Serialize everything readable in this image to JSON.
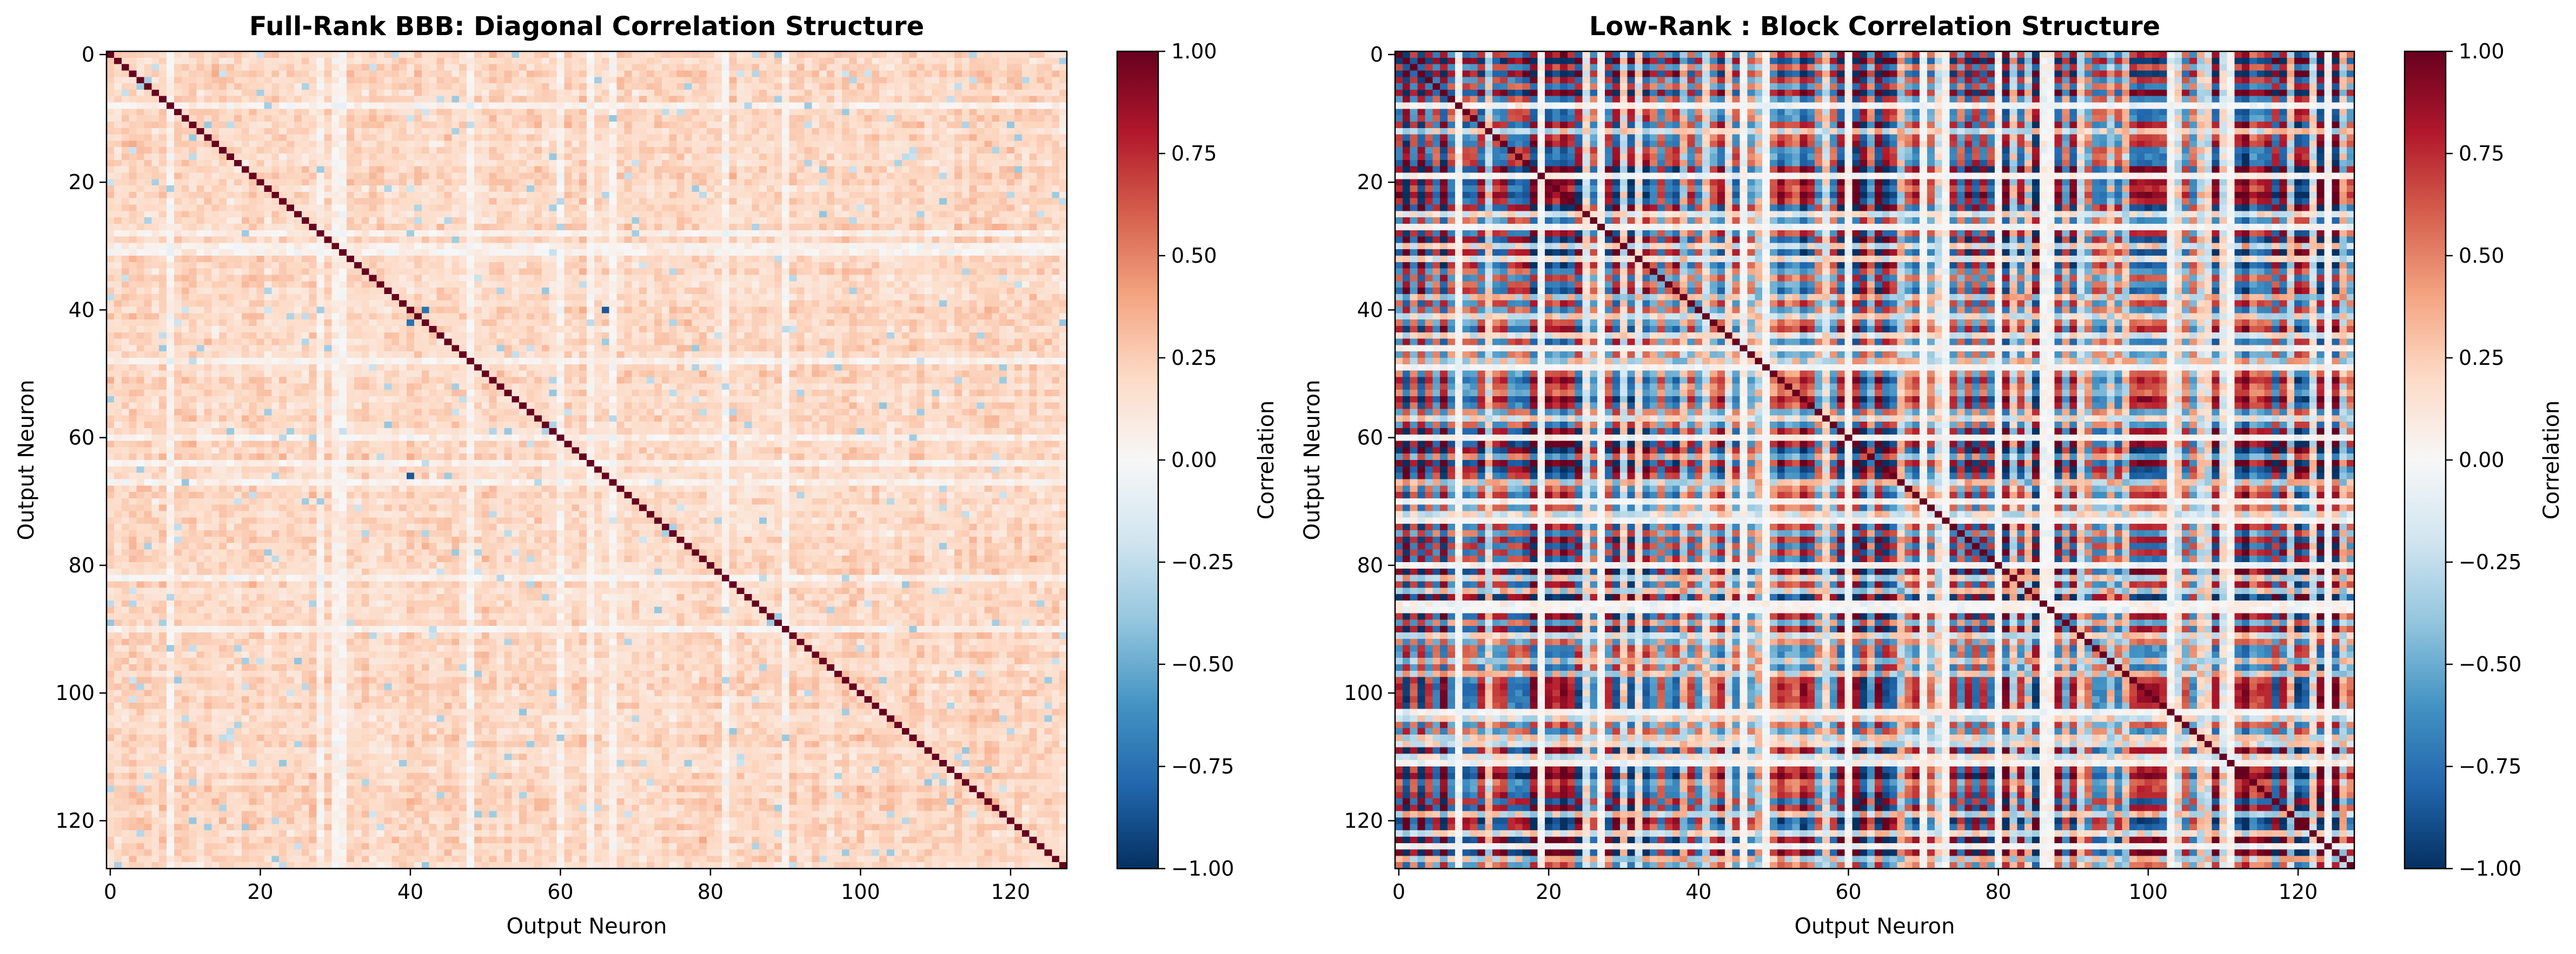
{
  "figure": {
    "background": "#ffffff"
  },
  "colormap": {
    "name": "RdBu_r",
    "stops": [
      "#053061",
      "#2166ac",
      "#4393c3",
      "#92c5de",
      "#d1e5f0",
      "#f7f7f7",
      "#fddbc7",
      "#f4a582",
      "#d6604d",
      "#b2182b",
      "#67001f"
    ]
  },
  "chart_data": [
    {
      "type": "heatmap",
      "title": "Full-Rank BBB: Diagonal Correlation Structure",
      "xlabel": "Output Neuron",
      "ylabel": "Output Neuron",
      "size": 128,
      "xlim": [
        -0.5,
        127.5
      ],
      "ylim": [
        127.5,
        -0.5
      ],
      "xticks": [
        0,
        20,
        40,
        60,
        80,
        100,
        120
      ],
      "xtick_labels": [
        "0",
        "20",
        "40",
        "60",
        "80",
        "100",
        "120"
      ],
      "yticks": [
        0,
        20,
        40,
        60,
        80,
        100,
        120
      ],
      "ytick_labels": [
        "0",
        "20",
        "40",
        "60",
        "80",
        "100",
        "120"
      ],
      "structure": "diagonal",
      "diagonal_value": 1.0,
      "offdiag_mean": 0.2,
      "offdiag_spread": 0.12,
      "weak_rows": [
        8,
        28,
        30,
        31,
        48,
        60,
        64,
        67,
        82,
        90
      ],
      "notable_cells": [
        [
          42,
          40,
          -0.75
        ],
        [
          66,
          40,
          -0.85
        ],
        [
          28,
          40,
          -0.35
        ],
        [
          4,
          65,
          -0.35
        ]
      ],
      "colorbar": {
        "label": "Correlation",
        "vmin": -1.0,
        "vmax": 1.0,
        "ticks": [
          1.0,
          0.75,
          0.5,
          0.25,
          0.0,
          -0.25,
          -0.5,
          -0.75,
          -1.0
        ],
        "tick_labels": [
          "1.00",
          "0.75",
          "0.50",
          "0.25",
          "0.00",
          "−0.25",
          "−0.50",
          "−0.75",
          "−1.00"
        ]
      }
    },
    {
      "type": "heatmap",
      "title": "Low-Rank : Block Correlation Structure",
      "xlabel": "Output Neuron",
      "ylabel": "Output Neuron",
      "size": 128,
      "xlim": [
        -0.5,
        127.5
      ],
      "ylim": [
        127.5,
        -0.5
      ],
      "xticks": [
        0,
        20,
        40,
        60,
        80,
        100,
        120
      ],
      "xtick_labels": [
        "0",
        "20",
        "40",
        "60",
        "80",
        "100",
        "120"
      ],
      "yticks": [
        0,
        20,
        40,
        60,
        80,
        100,
        120
      ],
      "ytick_labels": [
        "0",
        "20",
        "40",
        "60",
        "80",
        "100",
        "120"
      ],
      "structure": "block",
      "diagonal_value": 1.0,
      "neutral_neurons": [
        8,
        19,
        27,
        46,
        49,
        60,
        70,
        73,
        80,
        86,
        87,
        103,
        111,
        124
      ],
      "colorbar": {
        "label": "Correlation",
        "vmin": -1.0,
        "vmax": 1.0,
        "ticks": [
          1.0,
          0.75,
          0.5,
          0.25,
          0.0,
          -0.25,
          -0.5,
          -0.75,
          -1.0
        ],
        "tick_labels": [
          "1.00",
          "0.75",
          "0.50",
          "0.25",
          "0.00",
          "−0.25",
          "−0.50",
          "−0.75",
          "−1.00"
        ]
      }
    }
  ]
}
